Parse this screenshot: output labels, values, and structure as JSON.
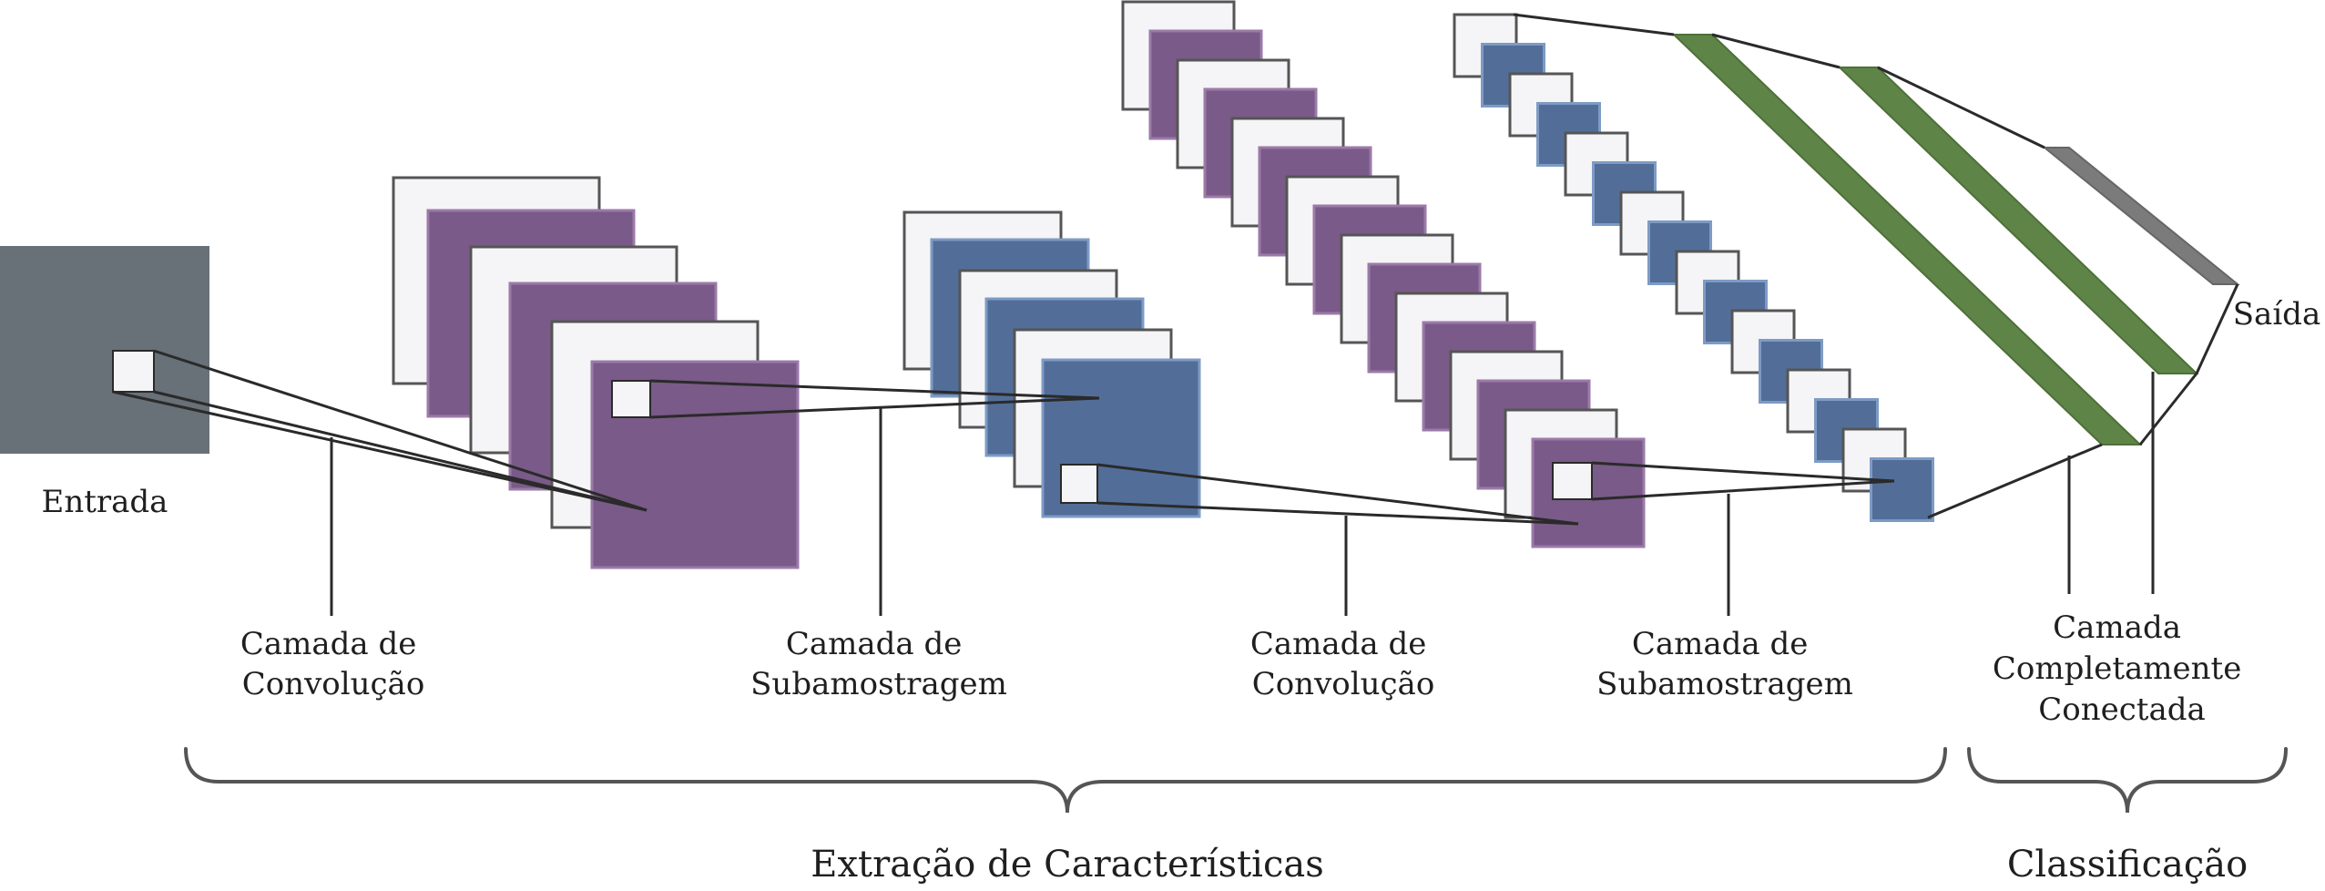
{
  "colors": {
    "input": "#687078",
    "purple": "#7a5a88",
    "purple_edge": "#9b7aa8",
    "blue": "#526e98",
    "blue_edge": "#7d9bc4",
    "white_map": "#f5f4f6",
    "white_edge": "#555555",
    "green": "#5e8447",
    "output": "#7b7b7b",
    "line": "#2a2a2a",
    "brace": "#555555"
  },
  "labels": {
    "input": "Entrada",
    "conv1": [
      "Camada de",
      "Convolução"
    ],
    "pool1": [
      "Camada de",
      "Subamostragem"
    ],
    "conv2": [
      "Camada de",
      "Convolução"
    ],
    "pool2": [
      "Camada de",
      "Subamostragem"
    ],
    "fc": [
      "Camada",
      "Completamente",
      "Conectada"
    ],
    "output": "Saída",
    "feature_extraction": "Extração de Características",
    "classification": "Classificação"
  }
}
